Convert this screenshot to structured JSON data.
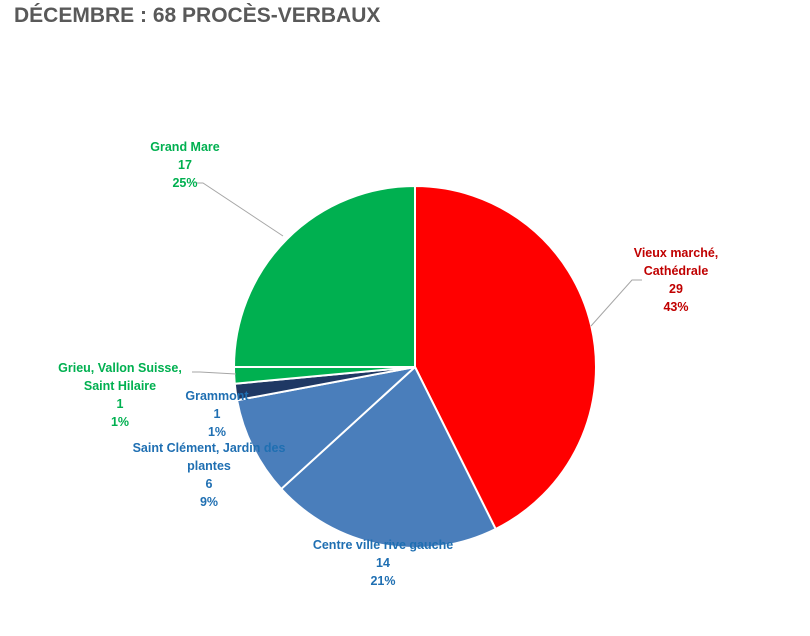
{
  "chart_data": {
    "type": "pie",
    "title": "DÉCEMBRE : 68 PROCÈS-VERBAUX",
    "start_angle_deg": 0,
    "direction": "clockwise",
    "slices": [
      {
        "name": "Vieux marché, Cathédrale",
        "label_lines": [
          "Vieux marché,",
          "Cathédrale"
        ],
        "value": 29,
        "percent": "43%",
        "color": "#FF0000",
        "label_color": "#C00000"
      },
      {
        "name": "Centre ville rive gauche",
        "label_lines": [
          "Centre ville rive gauche"
        ],
        "value": 14,
        "percent": "21%",
        "color": "#4A7EBB",
        "label_color": "#1F6FB2"
      },
      {
        "name": "Saint Clément, Jardin des plantes",
        "label_lines": [
          "Saint Clément, Jardin des",
          "plantes"
        ],
        "value": 6,
        "percent": "9%",
        "color": "#4A7EBB",
        "label_color": "#1F6FB2"
      },
      {
        "name": "Grammont",
        "label_lines": [
          "Grammont"
        ],
        "value": 1,
        "percent": "1%",
        "color": "#1F3864",
        "label_color": "#1F6FB2"
      },
      {
        "name": "Grieu, Vallon Suisse, Saint Hilaire",
        "label_lines": [
          "Grieu, Vallon Suisse,",
          "Saint Hilaire"
        ],
        "value": 1,
        "percent": "1%",
        "color": "#00B050",
        "label_color": "#00B050"
      },
      {
        "name": "Grand Mare",
        "label_lines": [
          "Grand Mare"
        ],
        "value": 17,
        "percent": "25%",
        "color": "#00B050",
        "label_color": "#00B050"
      }
    ]
  }
}
